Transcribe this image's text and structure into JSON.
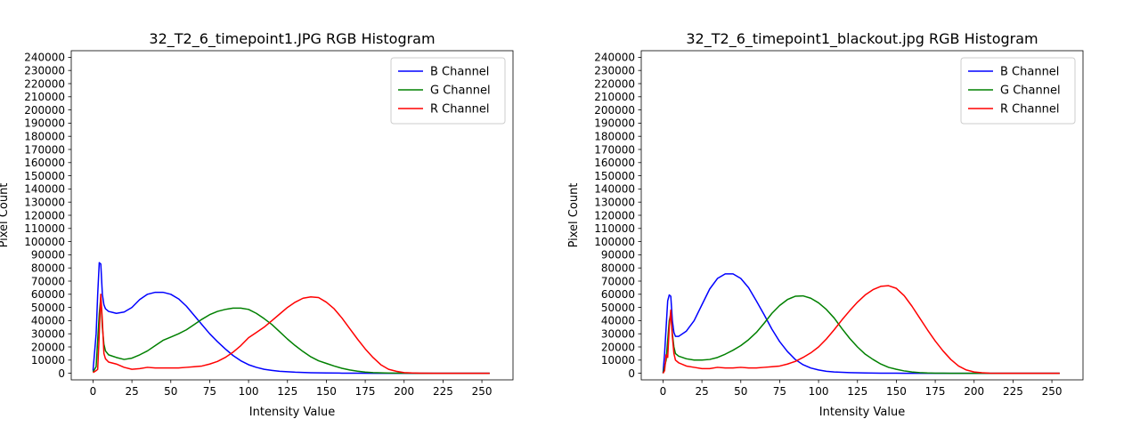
{
  "chart_data": [
    {
      "type": "line",
      "title": "32_T2_6_timepoint1.JPG RGB Histogram",
      "xlabel": "Intensity Value",
      "ylabel": "Pixel Count",
      "xlim": [
        -14,
        270
      ],
      "ylim": [
        -5000,
        245000
      ],
      "xticks": [
        0,
        25,
        50,
        75,
        100,
        125,
        150,
        175,
        200,
        225,
        250
      ],
      "yticks": [
        0,
        10000,
        20000,
        30000,
        40000,
        50000,
        60000,
        70000,
        80000,
        90000,
        100000,
        110000,
        120000,
        130000,
        140000,
        150000,
        160000,
        170000,
        180000,
        190000,
        200000,
        210000,
        220000,
        230000,
        240000
      ],
      "grid": false,
      "legend_position": "top-right",
      "series": [
        {
          "name": "B Channel",
          "color": "#0000ff",
          "x": [
            0,
            2,
            3,
            4,
            5,
            6,
            7,
            8,
            10,
            15,
            20,
            25,
            30,
            35,
            40,
            45,
            50,
            55,
            60,
            65,
            70,
            75,
            80,
            85,
            90,
            95,
            100,
            105,
            110,
            115,
            120,
            130,
            140,
            150,
            160,
            170,
            180,
            190,
            200,
            255
          ],
          "y": [
            2000,
            30000,
            60000,
            84000,
            83000,
            60000,
            52000,
            49000,
            47000,
            45500,
            46500,
            50000,
            56000,
            60000,
            61500,
            61500,
            60000,
            56500,
            51000,
            44000,
            37000,
            30000,
            24000,
            18500,
            13500,
            9500,
            6500,
            4500,
            3000,
            2200,
            1500,
            800,
            400,
            200,
            100,
            50,
            20,
            0,
            0,
            0
          ]
        },
        {
          "name": "G Channel",
          "color": "#008000",
          "x": [
            0,
            2,
            3,
            4,
            5,
            6,
            7,
            8,
            10,
            15,
            20,
            25,
            30,
            35,
            40,
            45,
            50,
            55,
            60,
            65,
            70,
            75,
            80,
            85,
            90,
            95,
            100,
            105,
            110,
            115,
            120,
            125,
            130,
            135,
            140,
            145,
            150,
            155,
            160,
            165,
            170,
            175,
            180,
            185,
            190,
            200,
            210,
            255
          ],
          "y": [
            1000,
            5000,
            25000,
            45000,
            58000,
            35000,
            22000,
            17000,
            14000,
            12000,
            10500,
            11500,
            14000,
            17000,
            21000,
            25000,
            27500,
            30000,
            33000,
            37000,
            41000,
            44500,
            47000,
            48500,
            49500,
            49500,
            48500,
            45500,
            41500,
            37000,
            31500,
            26000,
            21000,
            16500,
            12500,
            9500,
            7500,
            5500,
            3800,
            2500,
            1600,
            900,
            500,
            300,
            150,
            50,
            0,
            0
          ]
        },
        {
          "name": "R Channel",
          "color": "#ff0000",
          "x": [
            0,
            2,
            3,
            4,
            5,
            6,
            7,
            8,
            10,
            15,
            20,
            25,
            30,
            35,
            40,
            45,
            50,
            55,
            60,
            65,
            70,
            75,
            80,
            85,
            90,
            95,
            100,
            105,
            110,
            115,
            120,
            125,
            130,
            135,
            140,
            145,
            150,
            155,
            160,
            165,
            170,
            175,
            180,
            185,
            190,
            195,
            200,
            205,
            210,
            220,
            230,
            240,
            255
          ],
          "y": [
            500,
            2000,
            3000,
            30000,
            60000,
            40000,
            15000,
            11000,
            8500,
            7000,
            4500,
            3000,
            3500,
            4500,
            4000,
            4000,
            4000,
            4000,
            4500,
            5000,
            5500,
            7000,
            9000,
            12000,
            16000,
            21000,
            27000,
            31000,
            35000,
            40000,
            45000,
            50000,
            54000,
            57000,
            58000,
            57500,
            54000,
            49000,
            42000,
            34000,
            26000,
            18500,
            12000,
            6500,
            3000,
            1500,
            500,
            200,
            100,
            0,
            0,
            0,
            0
          ]
        }
      ]
    },
    {
      "type": "line",
      "title": "32_T2_6_timepoint1_blackout.jpg RGB Histogram",
      "xlabel": "Intensity Value",
      "ylabel": "Pixel Count",
      "xlim": [
        -14,
        270
      ],
      "ylim": [
        -5000,
        245000
      ],
      "xticks": [
        0,
        25,
        50,
        75,
        100,
        125,
        150,
        175,
        200,
        225,
        250
      ],
      "yticks": [
        0,
        10000,
        20000,
        30000,
        40000,
        50000,
        60000,
        70000,
        80000,
        90000,
        100000,
        110000,
        120000,
        130000,
        140000,
        150000,
        160000,
        170000,
        180000,
        190000,
        200000,
        210000,
        220000,
        230000,
        240000
      ],
      "grid": false,
      "legend_position": "top-right",
      "series": [
        {
          "name": "B Channel",
          "color": "#0000ff",
          "x": [
            0,
            1,
            2,
            3,
            4,
            5,
            6,
            7,
            8,
            10,
            15,
            20,
            25,
            30,
            35,
            40,
            45,
            50,
            55,
            60,
            65,
            70,
            75,
            80,
            85,
            90,
            95,
            100,
            105,
            110,
            120,
            130,
            140,
            150,
            160,
            170,
            180,
            190,
            255
          ],
          "y": [
            0,
            15000,
            35000,
            55000,
            59500,
            58500,
            40000,
            31000,
            28000,
            28000,
            32000,
            40000,
            52000,
            64000,
            72000,
            75500,
            75500,
            72000,
            65000,
            55000,
            44500,
            33500,
            24000,
            16500,
            10500,
            6500,
            4000,
            2500,
            1500,
            1000,
            500,
            200,
            100,
            50,
            0,
            0,
            0,
            0,
            0
          ]
        },
        {
          "name": "G Channel",
          "color": "#008000",
          "x": [
            0,
            1,
            2,
            3,
            4,
            5,
            6,
            7,
            8,
            10,
            15,
            20,
            25,
            30,
            35,
            40,
            45,
            50,
            55,
            60,
            65,
            70,
            75,
            80,
            85,
            90,
            95,
            100,
            105,
            110,
            115,
            120,
            125,
            130,
            135,
            140,
            145,
            150,
            155,
            160,
            165,
            170,
            175,
            180,
            185,
            190,
            200,
            255
          ],
          "y": [
            0,
            5000,
            10000,
            25000,
            40000,
            45000,
            30000,
            20000,
            15000,
            13000,
            11000,
            10000,
            10000,
            10500,
            12000,
            14500,
            17500,
            21000,
            25500,
            31000,
            38000,
            45500,
            51500,
            56000,
            58500,
            58800,
            57000,
            53500,
            48500,
            42000,
            34000,
            26500,
            20000,
            14500,
            10500,
            7000,
            4500,
            3000,
            1800,
            1000,
            500,
            200,
            100,
            50,
            0,
            0,
            0,
            0
          ]
        },
        {
          "name": "R Channel",
          "color": "#ff0000",
          "x": [
            0,
            1,
            2,
            3,
            4,
            5,
            6,
            7,
            8,
            10,
            15,
            20,
            25,
            30,
            35,
            40,
            45,
            50,
            55,
            60,
            65,
            70,
            75,
            80,
            85,
            90,
            95,
            100,
            105,
            110,
            115,
            120,
            125,
            130,
            135,
            140,
            145,
            150,
            155,
            160,
            165,
            170,
            175,
            180,
            185,
            190,
            195,
            200,
            205,
            210,
            220,
            255
          ],
          "y": [
            0,
            2000,
            14000,
            12000,
            35000,
            48000,
            28000,
            15000,
            10000,
            8000,
            5500,
            4500,
            3500,
            3500,
            4500,
            4000,
            4000,
            4500,
            4000,
            4000,
            4500,
            5000,
            5500,
            7000,
            9000,
            12000,
            15500,
            20000,
            26000,
            33000,
            40500,
            47500,
            54000,
            59500,
            63500,
            66000,
            66500,
            64500,
            59000,
            51000,
            42000,
            33000,
            24500,
            17000,
            10500,
            5500,
            2500,
            1000,
            400,
            100,
            0,
            0
          ]
        }
      ]
    }
  ]
}
